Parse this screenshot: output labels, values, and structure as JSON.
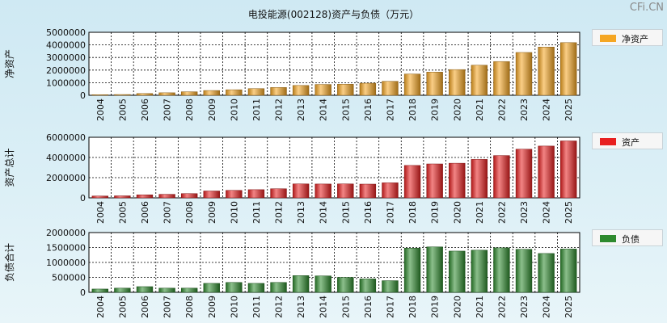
{
  "title": "电投能源(002128)资产与负债（万元）",
  "watermark": "CFi.CN",
  "chart_data": [
    {
      "type": "bar",
      "ylabel": "净资产",
      "legend": "净资产",
      "color": "#f5a623",
      "categories": [
        "2004",
        "2005",
        "2006",
        "2007",
        "2008",
        "2009",
        "2010",
        "2011",
        "2012",
        "2013",
        "2014",
        "2015",
        "2016",
        "2017",
        "2018",
        "2019",
        "2020",
        "2021",
        "2022",
        "2023",
        "2024",
        "2025"
      ],
      "values": [
        50000,
        60000,
        140000,
        200000,
        280000,
        380000,
        440000,
        530000,
        620000,
        780000,
        860000,
        880000,
        960000,
        1110000,
        1690000,
        1840000,
        2040000,
        2390000,
        2680000,
        3400000,
        3830000,
        4180000
      ],
      "ylim": [
        0,
        5000000
      ],
      "yticks": [
        "5000000",
        "4000000",
        "3000000",
        "2000000",
        "1000000",
        "0"
      ],
      "grid": true,
      "legend_position": "right"
    },
    {
      "type": "bar",
      "ylabel": "资产总计",
      "legend": "资产",
      "color": "#e82020",
      "categories": [
        "2004",
        "2005",
        "2006",
        "2007",
        "2008",
        "2009",
        "2010",
        "2011",
        "2012",
        "2013",
        "2014",
        "2015",
        "2016",
        "2017",
        "2018",
        "2019",
        "2020",
        "2021",
        "2022",
        "2023",
        "2024",
        "2025"
      ],
      "values": [
        180000,
        200000,
        300000,
        350000,
        420000,
        680000,
        740000,
        810000,
        900000,
        1380000,
        1370000,
        1380000,
        1360000,
        1490000,
        3210000,
        3360000,
        3430000,
        3810000,
        4190000,
        4820000,
        5130000,
        5640000
      ],
      "ylim": [
        0,
        6000000
      ],
      "yticks": [
        "6000000",
        "4000000",
        "2000000",
        "0"
      ],
      "grid": true,
      "legend_position": "right"
    },
    {
      "type": "bar",
      "ylabel": "负债合计",
      "legend": "负债",
      "color": "#2e8a2e",
      "categories": [
        "2004",
        "2005",
        "2006",
        "2007",
        "2008",
        "2009",
        "2010",
        "2011",
        "2012",
        "2013",
        "2014",
        "2015",
        "2016",
        "2017",
        "2018",
        "2019",
        "2020",
        "2021",
        "2022",
        "2023",
        "2024",
        "2025"
      ],
      "values": [
        110000,
        140000,
        190000,
        140000,
        140000,
        300000,
        330000,
        300000,
        330000,
        560000,
        550000,
        500000,
        450000,
        390000,
        1480000,
        1520000,
        1380000,
        1410000,
        1490000,
        1440000,
        1300000,
        1450000
      ],
      "ylim": [
        0,
        2000000
      ],
      "yticks": [
        "2000000",
        "1500000",
        "1000000",
        "500000",
        "0"
      ],
      "grid": true,
      "legend_position": "right"
    }
  ]
}
